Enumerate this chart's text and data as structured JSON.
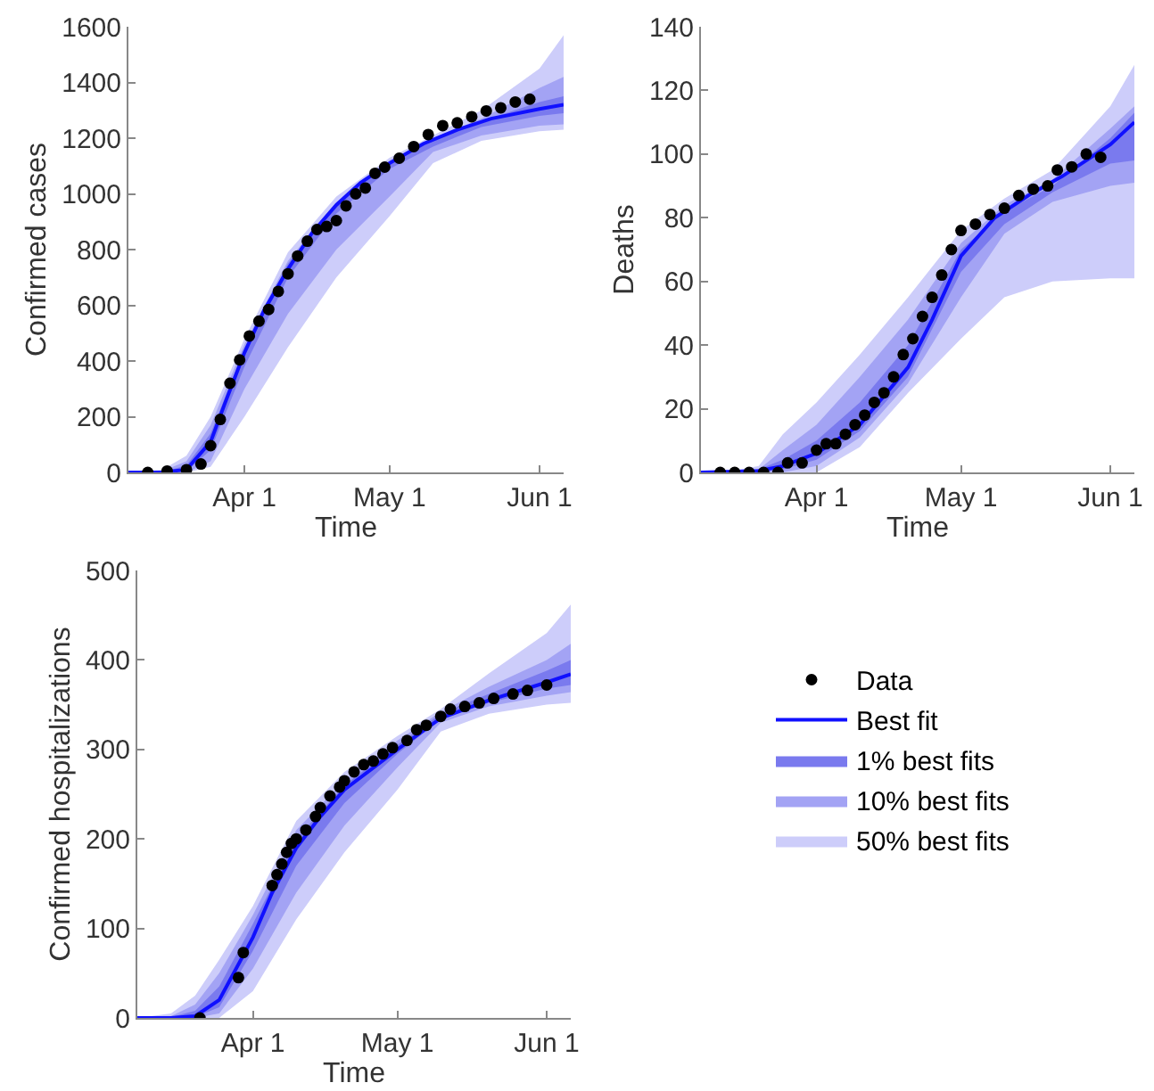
{
  "chart_data": [
    {
      "type": "line",
      "xlabel": "Time",
      "ylabel": "Confirmed cases",
      "xlim": [
        "--03-08",
        "--06-06"
      ],
      "xticks": [
        {
          "value": "--04-01",
          "label": "Apr 1"
        },
        {
          "value": "--05-01",
          "label": "May 1"
        },
        {
          "value": "--06-01",
          "label": "Jun 1"
        }
      ],
      "ylim": [
        0,
        1600
      ],
      "yticks": [
        0,
        200,
        400,
        600,
        800,
        1000,
        1200,
        1400,
        1600
      ],
      "series": [
        {
          "type": "line",
          "color": "#cdcdfa",
          "x": [
            "--03-08",
            "--03-15",
            "--03-20",
            "--03-25",
            "--04-01",
            "--04-10",
            "--04-20",
            "--05-01",
            "--05-10",
            "--05-20",
            "--06-01",
            "--06-06"
          ],
          "values": [
            null,
            null,
            null,
            null,
            null,
            null,
            null,
            null,
            null,
            null,
            null,
            null
          ],
          "upper": [
            0,
            10,
            60,
            200,
            480,
            790,
            990,
            1130,
            1210,
            1300,
            1450,
            1570
          ],
          "lower": [
            0,
            0,
            0,
            20,
            200,
            450,
            700,
            920,
            1110,
            1190,
            1225,
            1230
          ]
        },
        {
          "type": "line",
          "color": "#a3a3f4",
          "x": [
            "--03-08",
            "--03-15",
            "--03-20",
            "--03-25",
            "--04-01",
            "--04-10",
            "--04-20",
            "--05-01",
            "--05-10",
            "--05-20",
            "--06-01",
            "--06-06"
          ],
          "values": [
            null,
            null,
            null,
            null,
            null,
            null,
            null,
            null,
            null,
            null,
            null,
            null
          ],
          "upper": [
            0,
            5,
            40,
            170,
            460,
            760,
            970,
            1120,
            1200,
            1270,
            1380,
            1420
          ],
          "lower": [
            0,
            0,
            0,
            40,
            300,
            570,
            800,
            990,
            1150,
            1210,
            1245,
            1250
          ]
        },
        {
          "type": "line",
          "color": "#7a7aee",
          "x": [
            "--03-08",
            "--03-15",
            "--03-20",
            "--03-25",
            "--04-01",
            "--04-10",
            "--04-20",
            "--05-01",
            "--05-10",
            "--05-20",
            "--06-01",
            "--06-06"
          ],
          "values": [
            null,
            null,
            null,
            null,
            null,
            null,
            null,
            null,
            null,
            null,
            null,
            null
          ],
          "upper": [
            0,
            2,
            25,
            140,
            445,
            750,
            965,
            1115,
            1195,
            1260,
            1330,
            1350
          ],
          "lower": [
            0,
            0,
            5,
            80,
            380,
            700,
            930,
            1090,
            1170,
            1240,
            1280,
            1290
          ]
        },
        {
          "color": "#1010ff",
          "x": [
            "--03-08",
            "--03-15",
            "--03-20",
            "--03-25",
            "--03-28",
            "--04-01",
            "--04-05",
            "--04-10",
            "--04-15",
            "--04-20",
            "--04-25",
            "--05-01",
            "--05-08",
            "--05-15",
            "--05-22",
            "--06-01",
            "--06-06"
          ],
          "values": [
            0,
            1,
            10,
            110,
            250,
            430,
            580,
            730,
            860,
            960,
            1040,
            1110,
            1180,
            1230,
            1270,
            1305,
            1320
          ]
        },
        {
          "type": "scatter",
          "marker": "circle",
          "color": "#000000",
          "x": [
            "--03-12",
            "--03-16",
            "--03-20",
            "--03-23",
            "--03-25",
            "--03-27",
            "--03-29",
            "--03-31",
            "--04-02",
            "--04-04",
            "--04-06",
            "--04-08",
            "--04-10",
            "--04-12",
            "--04-14",
            "--04-16",
            "--04-18",
            "--04-20",
            "--04-22",
            "--04-24",
            "--04-26",
            "--04-28",
            "--04-30",
            "--05-03",
            "--05-06",
            "--05-09",
            "--05-12",
            "--05-15",
            "--05-18",
            "--05-21",
            "--05-24",
            "--05-27",
            "--05-30"
          ],
          "values": [
            0,
            5,
            10,
            30,
            96,
            190,
            320,
            404,
            490,
            543,
            585,
            650,
            713,
            777,
            830,
            872,
            883,
            904,
            957,
            1000,
            1021,
            1074,
            1096,
            1128,
            1170,
            1213,
            1245,
            1255,
            1277,
            1298,
            1309,
            1330,
            1340
          ]
        }
      ]
    },
    {
      "type": "line",
      "xlabel": "Time",
      "ylabel": "Deaths",
      "xlim": [
        "--03-08",
        "--06-06"
      ],
      "xticks": [
        {
          "value": "--04-01",
          "label": "Apr 1"
        },
        {
          "value": "--05-01",
          "label": "May 1"
        },
        {
          "value": "--06-01",
          "label": "Jun 1"
        }
      ],
      "ylim": [
        0,
        140
      ],
      "yticks": [
        0,
        20,
        40,
        60,
        80,
        100,
        120,
        140
      ],
      "series": [
        {
          "type": "line",
          "color": "#cdcdfa",
          "x": [
            "--03-08",
            "--03-15",
            "--03-20",
            "--03-25",
            "--04-01",
            "--04-10",
            "--04-20",
            "--05-01",
            "--05-10",
            "--05-20",
            "--06-01",
            "--06-06"
          ],
          "values": [
            null,
            null,
            null,
            null,
            null,
            null,
            null,
            null,
            null,
            null,
            null,
            null
          ],
          "upper": [
            0,
            0.5,
            2,
            12,
            22,
            37,
            55,
            76,
            86,
            95,
            115,
            128
          ],
          "lower": [
            0,
            0,
            0,
            0,
            0,
            8,
            25,
            42,
            55,
            60,
            61,
            61
          ]
        },
        {
          "type": "line",
          "color": "#a3a3f4",
          "x": [
            "--03-08",
            "--03-15",
            "--03-20",
            "--03-25",
            "--04-01",
            "--04-10",
            "--04-20",
            "--05-01",
            "--05-10",
            "--05-20",
            "--06-01",
            "--06-06"
          ],
          "values": [
            null,
            null,
            null,
            null,
            null,
            null,
            null,
            null,
            null,
            null,
            null,
            null
          ],
          "upper": [
            0,
            0,
            1,
            7,
            15,
            30,
            48,
            72,
            84,
            92,
            108,
            115
          ],
          "lower": [
            0,
            0,
            0,
            0,
            2,
            11,
            28,
            55,
            75,
            85,
            90,
            91
          ]
        },
        {
          "type": "line",
          "color": "#7a7aee",
          "x": [
            "--03-08",
            "--03-15",
            "--03-20",
            "--03-25",
            "--04-01",
            "--04-10",
            "--04-20",
            "--05-01",
            "--05-10",
            "--05-20",
            "--06-01",
            "--06-06"
          ],
          "values": [
            null,
            null,
            null,
            null,
            null,
            null,
            null,
            null,
            null,
            null,
            null,
            null
          ],
          "upper": [
            0,
            0,
            1,
            4,
            10,
            22,
            40,
            70,
            82,
            90,
            105,
            113
          ],
          "lower": [
            0,
            0,
            0,
            1,
            4,
            13,
            30,
            63,
            78,
            88,
            97,
            98
          ]
        },
        {
          "color": "#1010ff",
          "x": [
            "--03-08",
            "--03-20",
            "--03-25",
            "--04-01",
            "--04-10",
            "--04-20",
            "--04-25",
            "--05-01",
            "--05-08",
            "--05-15",
            "--05-22",
            "--06-01",
            "--06-06"
          ],
          "values": [
            0,
            0.5,
            2,
            6,
            15,
            33,
            48,
            68,
            80,
            87,
            93,
            103,
            110
          ]
        },
        {
          "type": "scatter",
          "marker": "circle",
          "color": "#000000",
          "x": [
            "--03-12",
            "--03-15",
            "--03-18",
            "--03-21",
            "--03-24",
            "--03-26",
            "--03-29",
            "--04-01",
            "--04-03",
            "--04-05",
            "--04-07",
            "--04-09",
            "--04-11",
            "--04-13",
            "--04-15",
            "--04-17",
            "--04-19",
            "--04-21",
            "--04-23",
            "--04-25",
            "--04-27",
            "--04-29",
            "--05-01",
            "--05-04",
            "--05-07",
            "--05-10",
            "--05-13",
            "--05-16",
            "--05-19",
            "--05-21",
            "--05-24",
            "--05-27",
            "--05-30"
          ],
          "values": [
            0,
            0,
            0,
            0,
            0,
            3,
            3,
            7,
            9,
            9,
            12,
            15,
            18,
            22,
            25,
            30,
            37,
            42,
            49,
            55,
            62,
            70,
            76,
            78,
            81,
            83,
            87,
            89,
            90,
            95,
            96,
            100,
            99
          ]
        }
      ]
    },
    {
      "type": "line",
      "xlabel": "Time",
      "ylabel": "Confirmed hospitalizations",
      "legend": "right",
      "xlim": [
        "--03-08",
        "--06-06"
      ],
      "xticks": [
        {
          "value": "--04-01",
          "label": "Apr 1"
        },
        {
          "value": "--05-01",
          "label": "May 1"
        },
        {
          "value": "--06-01",
          "label": "Jun 1"
        }
      ],
      "ylim": [
        0,
        500
      ],
      "yticks": [
        0,
        100,
        200,
        300,
        400,
        500
      ],
      "series": [
        {
          "name": "50% best fits",
          "type": "line",
          "color": "#cdcdfa",
          "x": [
            "--03-08",
            "--03-15",
            "--03-20",
            "--03-25",
            "--04-01",
            "--04-10",
            "--04-20",
            "--05-01",
            "--05-10",
            "--05-20",
            "--06-01",
            "--06-06"
          ],
          "values": [
            null,
            null,
            null,
            null,
            null,
            null,
            null,
            null,
            null,
            null,
            null,
            null
          ],
          "upper": [
            0,
            5,
            25,
            65,
            125,
            220,
            275,
            315,
            345,
            385,
            430,
            462
          ],
          "lower": [
            0,
            0,
            0,
            0,
            30,
            110,
            185,
            255,
            320,
            340,
            350,
            352
          ]
        },
        {
          "name": "10% best fits",
          "type": "line",
          "color": "#a3a3f4",
          "x": [
            "--03-08",
            "--03-15",
            "--03-20",
            "--03-25",
            "--04-01",
            "--04-10",
            "--04-20",
            "--05-01",
            "--05-10",
            "--05-20",
            "--06-01",
            "--06-06"
          ],
          "values": [
            null,
            null,
            null,
            null,
            null,
            null,
            null,
            null,
            null,
            null,
            null,
            null
          ],
          "upper": [
            0,
            2,
            15,
            50,
            115,
            210,
            265,
            310,
            342,
            370,
            400,
            418
          ],
          "lower": [
            0,
            0,
            0,
            5,
            55,
            140,
            215,
            280,
            330,
            348,
            360,
            364
          ]
        },
        {
          "name": "1% best fits",
          "type": "line",
          "color": "#7a7aee",
          "x": [
            "--03-08",
            "--03-15",
            "--03-20",
            "--03-25",
            "--04-01",
            "--04-10",
            "--04-20",
            "--05-01",
            "--05-10",
            "--05-20",
            "--06-01",
            "--06-06"
          ],
          "values": [
            null,
            null,
            null,
            null,
            null,
            null,
            null,
            null,
            null,
            null,
            null,
            null
          ],
          "upper": [
            0,
            1,
            8,
            35,
            105,
            200,
            260,
            305,
            340,
            362,
            388,
            400
          ],
          "lower": [
            0,
            0,
            1,
            12,
            75,
            170,
            240,
            295,
            334,
            352,
            368,
            372
          ]
        },
        {
          "name": "Best fit",
          "color": "#1010ff",
          "x": [
            "--03-08",
            "--03-15",
            "--03-20",
            "--03-25",
            "--04-01",
            "--04-05",
            "--04-10",
            "--04-15",
            "--04-20",
            "--05-01",
            "--05-10",
            "--05-20",
            "--06-01",
            "--06-06"
          ],
          "values": [
            0,
            0,
            2,
            20,
            90,
            140,
            190,
            225,
            255,
            300,
            335,
            355,
            375,
            384
          ]
        },
        {
          "name": "Data",
          "type": "scatter",
          "marker": "circle",
          "color": "#000000",
          "x": [
            "--03-21",
            "--03-29",
            "--03-30",
            "--04-05",
            "--04-06",
            "--04-07",
            "--04-08",
            "--04-09",
            "--04-10",
            "--04-12",
            "--04-14",
            "--04-15",
            "--04-17",
            "--04-19",
            "--04-20",
            "--04-22",
            "--04-24",
            "--04-26",
            "--04-28",
            "--04-30",
            "--05-03",
            "--05-05",
            "--05-07",
            "--05-10",
            "--05-12",
            "--05-15",
            "--05-18",
            "--05-21",
            "--05-25",
            "--05-28",
            "--06-01"
          ],
          "values": [
            0,
            45,
            73,
            148,
            160,
            172,
            185,
            195,
            200,
            210,
            225,
            235,
            248,
            258,
            265,
            275,
            283,
            287,
            295,
            302,
            310,
            322,
            327,
            337,
            345,
            348,
            352,
            357,
            362,
            366,
            372
          ]
        }
      ]
    }
  ]
}
